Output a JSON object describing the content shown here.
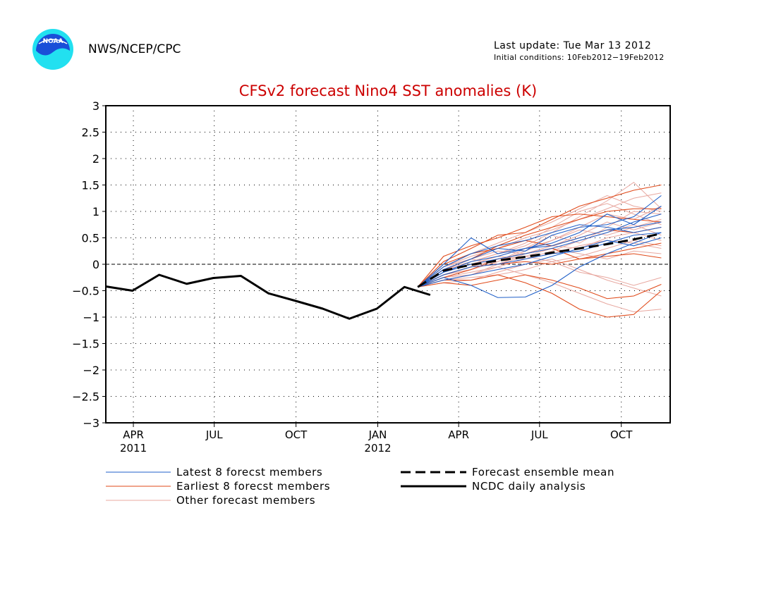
{
  "header": {
    "logo_text": "NOAA",
    "org": "NWS/NCEP/CPC",
    "last_update": "Last update: Tue Mar 13 2012",
    "initial_conditions": "Initial conditions: 10Feb2012−19Feb2012"
  },
  "colors": {
    "latest": "#1f5fc8",
    "earliest": "#e04a1a",
    "other": "#e8a8a0",
    "title": "#cc0000",
    "mean": "#000000",
    "observed": "#000000"
  },
  "chart_data": {
    "type": "line",
    "title": "CFSv2 forecast Nino4 SST anomalies (K)",
    "xlabel": "",
    "ylabel": "",
    "x_unit": "month",
    "xlim": [
      "2011-03-01",
      "2012-11-25"
    ],
    "ylim": [
      -3,
      3
    ],
    "yticks": [
      3,
      2.5,
      2,
      1.5,
      1,
      0.5,
      0,
      -0.5,
      -1,
      -1.5,
      -2,
      -2.5,
      -3
    ],
    "ytick_labels": [
      "3",
      "2.5",
      "2",
      "1.5",
      "1",
      "0.5",
      "0",
      "−0.5",
      "−1",
      "−1.5",
      "−2",
      "−2.5",
      "−3"
    ],
    "xticks": [
      {
        "date": "2011-04-01",
        "label": "APR",
        "year": "2011"
      },
      {
        "date": "2011-07-01",
        "label": "JUL",
        "year": ""
      },
      {
        "date": "2011-10-01",
        "label": "OCT",
        "year": ""
      },
      {
        "date": "2012-01-01",
        "label": "JAN",
        "year": "2012"
      },
      {
        "date": "2012-04-01",
        "label": "APR",
        "year": ""
      },
      {
        "date": "2012-07-01",
        "label": "JUL",
        "year": ""
      },
      {
        "date": "2012-10-01",
        "label": "OCT",
        "year": ""
      }
    ],
    "grid": true,
    "zero_line": true,
    "forecast_x": [
      "2012-02-15",
      "2012-03-15",
      "2012-04-15",
      "2012-05-15",
      "2012-06-15",
      "2012-07-15",
      "2012-08-15",
      "2012-09-15",
      "2012-10-15",
      "2012-11-15"
    ],
    "observed": {
      "name": "NCDC daily analysis",
      "x": [
        "2011-03-01",
        "2011-03-31",
        "2011-04-30",
        "2011-05-31",
        "2011-06-30",
        "2011-07-31",
        "2011-08-31",
        "2011-09-30",
        "2011-10-31",
        "2011-11-30",
        "2011-12-31",
        "2012-01-31",
        "2012-02-29"
      ],
      "values": [
        -0.42,
        -0.5,
        -0.2,
        -0.37,
        -0.26,
        -0.22,
        -0.55,
        -0.69,
        -0.84,
        -1.03,
        -0.84,
        -0.43,
        -0.58
      ]
    },
    "mean": {
      "name": "Forecast ensemble mean",
      "values": [
        -0.43,
        -0.12,
        -0.01,
        0.07,
        0.14,
        0.22,
        0.3,
        0.38,
        0.47,
        0.58
      ]
    },
    "series": [
      {
        "group": "other",
        "values": [
          -0.43,
          -0.05,
          0.15,
          0.3,
          0.5,
          0.65,
          0.85,
          1.05,
          1.25,
          1.35
        ]
      },
      {
        "group": "other",
        "values": [
          -0.43,
          -0.1,
          0.05,
          0.2,
          0.35,
          0.6,
          0.9,
          1.2,
          1.55,
          1.05
        ]
      },
      {
        "group": "other",
        "values": [
          -0.43,
          -0.2,
          -0.1,
          0.05,
          0.25,
          0.45,
          0.7,
          0.95,
          0.85,
          1.1
        ]
      },
      {
        "group": "other",
        "values": [
          -0.43,
          -0.15,
          0.0,
          0.15,
          0.3,
          0.55,
          0.4,
          0.7,
          1.0,
          0.95
        ]
      },
      {
        "group": "other",
        "values": [
          -0.43,
          -0.25,
          -0.2,
          -0.05,
          0.1,
          0.25,
          0.45,
          0.6,
          0.75,
          0.55
        ]
      },
      {
        "group": "other",
        "values": [
          -0.43,
          -0.3,
          -0.25,
          -0.2,
          -0.1,
          0.05,
          0.15,
          0.3,
          0.45,
          0.35
        ]
      },
      {
        "group": "other",
        "values": [
          -0.43,
          -0.05,
          0.1,
          0.25,
          0.2,
          0.35,
          0.55,
          0.8,
          0.65,
          0.8
        ]
      },
      {
        "group": "other",
        "values": [
          -0.43,
          -0.35,
          -0.3,
          -0.15,
          0.0,
          0.1,
          -0.1,
          -0.3,
          -0.45,
          -0.6
        ]
      },
      {
        "group": "other",
        "values": [
          -0.43,
          -0.2,
          -0.05,
          0.1,
          0.15,
          0.05,
          -0.15,
          -0.25,
          -0.4,
          -0.25
        ]
      },
      {
        "group": "other",
        "values": [
          -0.43,
          -0.15,
          0.05,
          0.2,
          0.4,
          0.7,
          1.0,
          1.15,
          0.95,
          0.75
        ]
      },
      {
        "group": "other",
        "values": [
          -0.43,
          -0.1,
          0.1,
          0.0,
          0.2,
          0.35,
          0.3,
          0.5,
          0.6,
          0.45
        ]
      },
      {
        "group": "other",
        "values": [
          -0.43,
          -0.25,
          -0.15,
          -0.05,
          -0.2,
          -0.35,
          -0.55,
          -0.75,
          -0.9,
          -0.85
        ]
      },
      {
        "group": "other",
        "values": [
          -0.43,
          -0.05,
          0.2,
          0.4,
          0.6,
          0.8,
          1.05,
          1.3,
          1.1,
          1.0
        ]
      },
      {
        "group": "other",
        "values": [
          -0.43,
          -0.3,
          -0.2,
          0.0,
          0.15,
          0.3,
          0.2,
          0.1,
          0.25,
          0.2
        ]
      },
      {
        "group": "other",
        "values": [
          -0.43,
          -0.2,
          -0.1,
          0.05,
          0.3,
          0.45,
          0.65,
          0.55,
          0.7,
          0.85
        ]
      },
      {
        "group": "other",
        "values": [
          -0.43,
          -0.1,
          0.0,
          0.15,
          0.1,
          0.2,
          0.35,
          0.45,
          0.4,
          0.3
        ]
      },
      {
        "group": "earliest",
        "values": [
          -0.43,
          0.05,
          0.3,
          0.55,
          0.6,
          0.85,
          1.1,
          1.25,
          1.4,
          1.5
        ]
      },
      {
        "group": "earliest",
        "values": [
          -0.43,
          0.15,
          0.35,
          0.5,
          0.7,
          0.9,
          0.95,
          0.9,
          0.85,
          0.8
        ]
      },
      {
        "group": "earliest",
        "values": [
          -0.43,
          -0.1,
          0.1,
          0.35,
          0.55,
          0.7,
          0.85,
          1.0,
          1.05,
          1.05
        ]
      },
      {
        "group": "earliest",
        "values": [
          -0.43,
          -0.3,
          -0.3,
          -0.2,
          -0.35,
          -0.55,
          -0.85,
          -1.0,
          -0.95,
          -0.5
        ]
      },
      {
        "group": "earliest",
        "values": [
          -0.43,
          -0.35,
          -0.4,
          -0.3,
          -0.2,
          -0.3,
          -0.45,
          -0.65,
          -0.6,
          -0.38
        ]
      },
      {
        "group": "earliest",
        "values": [
          -0.43,
          -0.2,
          -0.05,
          0.0,
          0.05,
          0.0,
          0.1,
          0.15,
          0.2,
          0.12
        ]
      },
      {
        "group": "earliest",
        "values": [
          -0.43,
          0.0,
          0.2,
          0.3,
          0.45,
          0.35,
          0.5,
          0.65,
          0.6,
          0.7
        ]
      },
      {
        "group": "earliest",
        "values": [
          -0.43,
          -0.25,
          -0.1,
          0.1,
          0.2,
          0.3,
          0.1,
          0.2,
          0.3,
          0.4
        ]
      },
      {
        "group": "latest",
        "values": [
          -0.43,
          0.0,
          0.5,
          0.2,
          0.3,
          0.4,
          0.6,
          0.95,
          0.75,
          1.1
        ]
      },
      {
        "group": "latest",
        "values": [
          -0.43,
          -0.25,
          -0.4,
          -0.63,
          -0.62,
          -0.4,
          -0.05,
          0.2,
          0.4,
          0.6
        ]
      },
      {
        "group": "latest",
        "values": [
          -0.43,
          -0.1,
          0.1,
          0.3,
          0.25,
          0.55,
          0.7,
          0.75,
          0.9,
          1.3
        ]
      },
      {
        "group": "latest",
        "values": [
          -0.43,
          -0.15,
          0.05,
          0.15,
          0.3,
          0.35,
          0.5,
          0.65,
          0.7,
          0.8
        ]
      },
      {
        "group": "latest",
        "values": [
          -0.43,
          -0.2,
          -0.05,
          0.0,
          0.1,
          0.2,
          0.25,
          0.4,
          0.55,
          0.6
        ]
      },
      {
        "group": "latest",
        "values": [
          -0.43,
          -0.05,
          0.2,
          0.35,
          0.45,
          0.6,
          0.75,
          0.7,
          0.6,
          0.7
        ]
      },
      {
        "group": "latest",
        "values": [
          -0.43,
          -0.3,
          -0.2,
          -0.1,
          0.0,
          0.15,
          0.3,
          0.45,
          0.35,
          0.5
        ]
      },
      {
        "group": "latest",
        "values": [
          -0.43,
          -0.15,
          0.0,
          0.1,
          0.2,
          0.3,
          0.45,
          0.6,
          0.8,
          0.95
        ]
      }
    ],
    "legend": {
      "placement": "bottom",
      "items": [
        {
          "key": "latest",
          "label": "Latest 8 forecst members"
        },
        {
          "key": "earliest",
          "label": "Earliest 8 forecst members"
        },
        {
          "key": "other",
          "label": "Other forecast members"
        },
        {
          "key": "mean",
          "label": "Forecast ensemble mean"
        },
        {
          "key": "observed",
          "label": "NCDC daily analysis"
        }
      ]
    }
  }
}
